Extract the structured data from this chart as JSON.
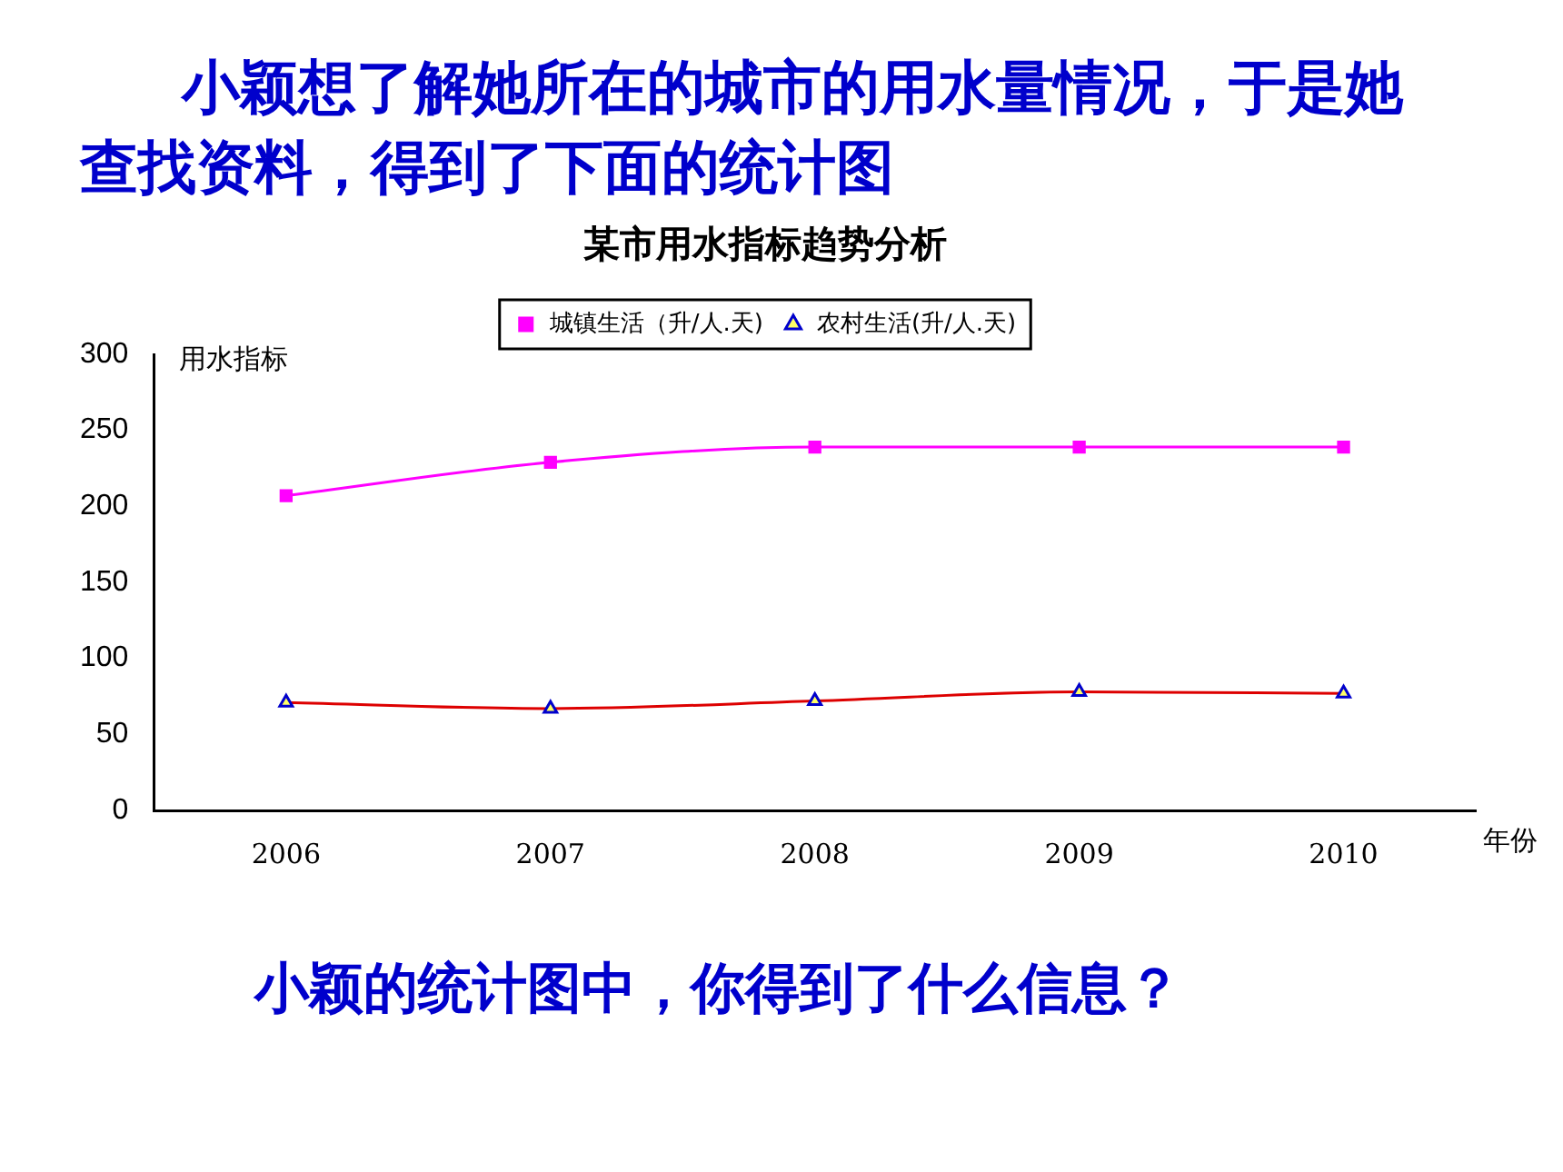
{
  "chart_data": {
    "type": "line",
    "title": "某市用水指标趋势分析",
    "ylabel": "用水指标",
    "xlabel": "年份",
    "annotations": [
      "小颖想了解她所在的城市的用水量情况，于是她查找资料，得到了下面的统计图",
      "小颖的统计图中，你得到了什么信息？"
    ],
    "categories": [
      "2006",
      "2007",
      "2008",
      "2009",
      "2010"
    ],
    "series": [
      {
        "name": "城镇生活（升/人.天)",
        "color": "#ff00ff",
        "marker": "square",
        "values": [
          207,
          229,
          239,
          239,
          239
        ]
      },
      {
        "name": "农村生活(升/人.天)",
        "color": "#dd0000",
        "marker": "triangle",
        "values": [
          71,
          67,
          72,
          78,
          77
        ]
      }
    ],
    "ylim": [
      0,
      300
    ],
    "yticks": [
      0,
      50,
      100,
      150,
      200,
      250,
      300
    ],
    "grid": false,
    "legend": "top"
  }
}
